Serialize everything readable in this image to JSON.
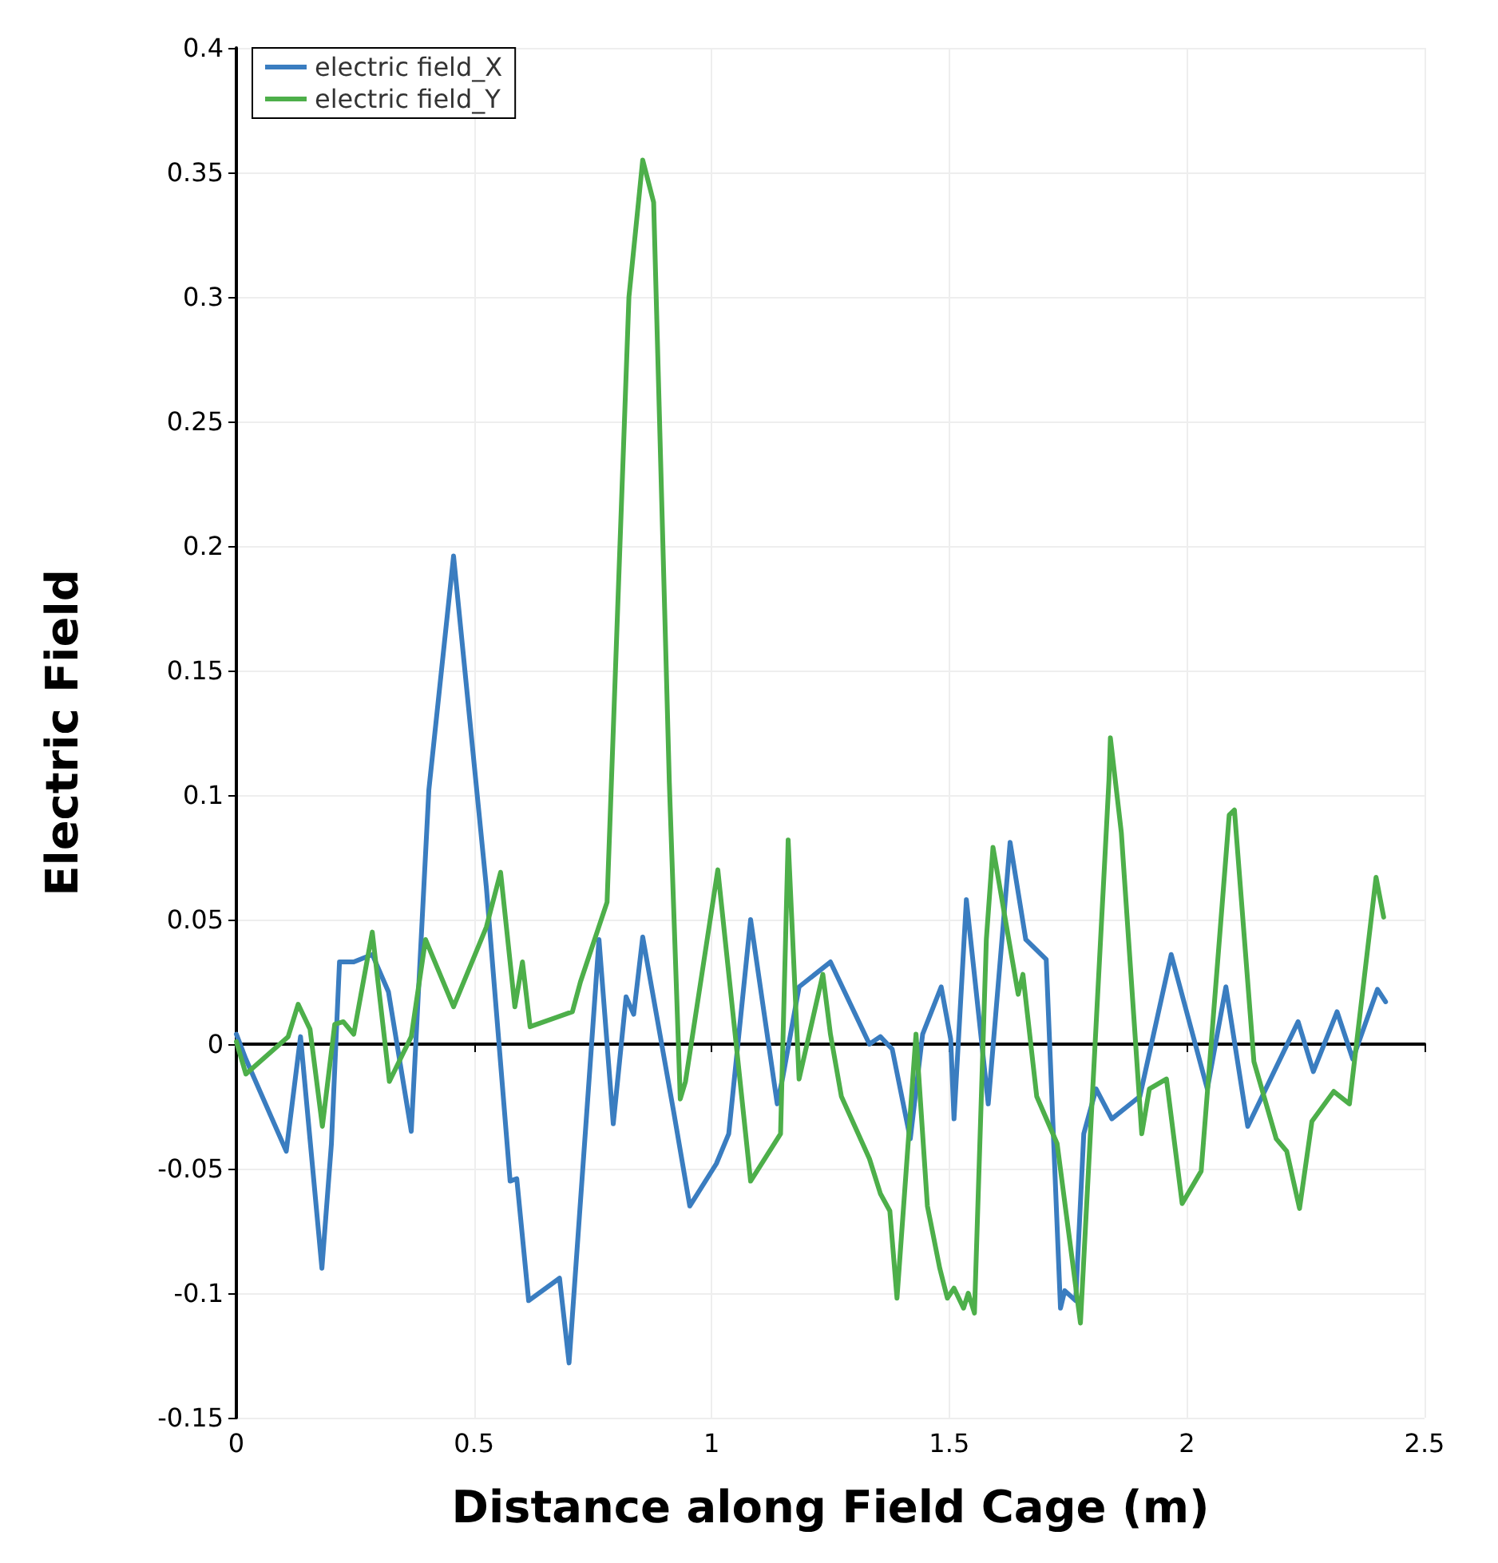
{
  "chart_data": {
    "type": "line",
    "xlabel": "Distance along Field Cage (m)",
    "ylabel": "Electric Field",
    "xlim": [
      0,
      2.5
    ],
    "xticks": [
      0,
      0.5,
      1,
      1.5,
      2,
      2.5
    ],
    "ylim": [
      -0.15,
      0.4
    ],
    "yticks": [
      -0.15,
      -0.1,
      -0.05,
      0,
      0.05,
      0.1,
      0.15,
      0.2,
      0.25,
      0.3,
      0.35,
      0.4
    ],
    "grid": true,
    "legend": "top left",
    "marker": "none",
    "line_style": "solid",
    "series": [
      {
        "name": "electric field_X",
        "color": "#3a7dc0",
        "x": [
          0,
          0.02,
          0.105,
          0.135,
          0.18,
          0.2,
          0.217,
          0.247,
          0.286,
          0.32,
          0.368,
          0.405,
          0.457,
          0.526,
          0.576,
          0.59,
          0.615,
          0.68,
          0.7,
          0.763,
          0.793,
          0.82,
          0.836,
          0.855,
          0.92,
          0.954,
          1.01,
          1.036,
          1.082,
          1.138,
          1.15,
          1.184,
          1.25,
          1.332,
          1.355,
          1.38,
          1.418,
          1.444,
          1.483,
          1.503,
          1.51,
          1.536,
          1.582,
          1.628,
          1.661,
          1.704,
          1.734,
          1.743,
          1.766,
          1.783,
          1.809,
          1.842,
          1.901,
          1.967,
          2.043,
          2.082,
          2.128,
          2.234,
          2.266,
          2.316,
          2.349,
          2.401,
          2.418
        ],
        "values": [
          0.004,
          -0.006,
          -0.043,
          0.003,
          -0.09,
          -0.04,
          0.033,
          0.033,
          0.036,
          0.021,
          -0.035,
          0.102,
          0.196,
          0.063,
          -0.055,
          -0.054,
          -0.103,
          -0.094,
          -0.128,
          0.042,
          -0.032,
          0.019,
          0.012,
          0.043,
          -0.027,
          -0.065,
          -0.048,
          -0.036,
          0.05,
          -0.024,
          -0.013,
          0.023,
          0.033,
          0,
          0.003,
          -0.002,
          -0.038,
          0.004,
          0.023,
          0.002,
          -0.03,
          0.058,
          -0.024,
          0.081,
          0.042,
          0.034,
          -0.106,
          -0.099,
          -0.103,
          -0.036,
          -0.018,
          -0.03,
          -0.021,
          0.036,
          -0.018,
          0.023,
          -0.033,
          0.009,
          -0.011,
          0.013,
          -0.006,
          0.022,
          0.017
        ]
      },
      {
        "name": "electric field_Y",
        "color": "#4daf4a",
        "x": [
          0,
          0.02,
          0.109,
          0.13,
          0.155,
          0.181,
          0.207,
          0.225,
          0.247,
          0.286,
          0.322,
          0.368,
          0.398,
          0.457,
          0.526,
          0.556,
          0.586,
          0.602,
          0.618,
          0.707,
          0.724,
          0.78,
          0.826,
          0.855,
          0.878,
          0.911,
          0.934,
          0.945,
          1.013,
          1.082,
          1.145,
          1.161,
          1.184,
          1.234,
          1.25,
          1.273,
          1.332,
          1.355,
          1.375,
          1.39,
          1.43,
          1.454,
          1.48,
          1.496,
          1.51,
          1.53,
          1.54,
          1.553,
          1.578,
          1.592,
          1.645,
          1.655,
          1.684,
          1.727,
          1.776,
          1.836,
          1.839,
          1.862,
          1.905,
          1.921,
          1.957,
          1.99,
          2.03,
          2.089,
          2.1,
          2.141,
          2.188,
          2.21,
          2.237,
          2.263,
          2.309,
          2.342,
          2.398,
          2.414
        ],
        "values": [
          0.001,
          -0.012,
          0.003,
          0.016,
          0.006,
          -0.033,
          0.008,
          0.009,
          0.004,
          0.045,
          -0.015,
          0.003,
          0.042,
          0.015,
          0.047,
          0.069,
          0.015,
          0.033,
          0.007,
          0.013,
          0.025,
          0.057,
          0.3,
          0.355,
          0.338,
          0.105,
          -0.022,
          -0.015,
          0.07,
          -0.055,
          -0.036,
          0.082,
          -0.014,
          0.028,
          0.004,
          -0.021,
          -0.046,
          -0.06,
          -0.067,
          -0.102,
          0.004,
          -0.065,
          -0.09,
          -0.102,
          -0.098,
          -0.106,
          -0.1,
          -0.108,
          0.042,
          0.079,
          0.02,
          0.028,
          -0.021,
          -0.04,
          -0.112,
          0.106,
          0.123,
          0.085,
          -0.036,
          -0.018,
          -0.014,
          -0.064,
          -0.051,
          0.092,
          0.094,
          -0.007,
          -0.038,
          -0.043,
          -0.066,
          -0.031,
          -0.019,
          -0.024,
          0.067,
          0.051
        ]
      }
    ]
  }
}
